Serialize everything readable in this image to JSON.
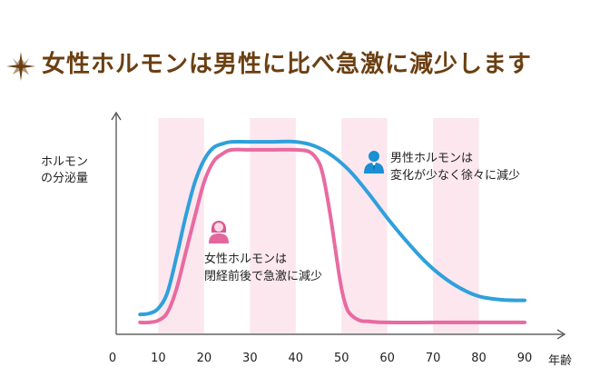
{
  "title": "女性ホルモンは男性に比べ急激に減少します",
  "chart_data": {
    "type": "line",
    "title": "女性ホルモンは男性に比べ急激に減少します",
    "ylabel_line1": "ホルモン",
    "ylabel_line2": "の分泌量",
    "xlabel": "年齢",
    "xlim": [
      0,
      90
    ],
    "ylim": [
      0,
      100
    ],
    "x_ticks": [
      0,
      10,
      20,
      30,
      40,
      50,
      60,
      70,
      80,
      90
    ],
    "x_tick_labels": [
      "0",
      "10",
      "20",
      "30",
      "40",
      "50",
      "60",
      "70",
      "80",
      "90"
    ],
    "shaded_bands": [
      [
        10,
        20
      ],
      [
        30,
        40
      ],
      [
        50,
        60
      ],
      [
        70,
        80
      ]
    ],
    "series": [
      {
        "name": "男性ホルモン",
        "color": "#2fa0dc",
        "annotation": [
          "男性ホルモンは",
          "変化が少なく徐々に減少"
        ],
        "x": [
          6,
          8,
          10,
          12,
          14,
          16,
          18,
          20,
          22,
          24,
          26,
          30,
          35,
          40,
          44,
          48,
          52,
          56,
          60,
          64,
          68,
          72,
          76,
          80,
          84,
          88,
          90
        ],
        "y": [
          9,
          9.5,
          12,
          20,
          38,
          58,
          75,
          86,
          92,
          94,
          95,
          95,
          95,
          95,
          93,
          88,
          80,
          69,
          57,
          46,
          36,
          28,
          22,
          18,
          16.5,
          16,
          16
        ]
      },
      {
        "name": "女性ホルモン",
        "color": "#e86aa0",
        "annotation": [
          "女性ホルモンは",
          "閉経前後で急激に減少"
        ],
        "x": [
          6,
          8,
          10,
          12,
          14,
          16,
          18,
          20,
          22,
          24,
          26,
          30,
          35,
          40,
          43,
          45,
          46,
          47,
          48,
          49,
          50,
          51,
          52,
          54,
          56,
          60,
          70,
          80,
          90
        ],
        "y": [
          5,
          5,
          6,
          10,
          22,
          40,
          58,
          75,
          85,
          89,
          91,
          91,
          91,
          91,
          90,
          85,
          78,
          66,
          52,
          36,
          22,
          13,
          9,
          6,
          5.5,
          5,
          5,
          5,
          5
        ]
      }
    ]
  }
}
